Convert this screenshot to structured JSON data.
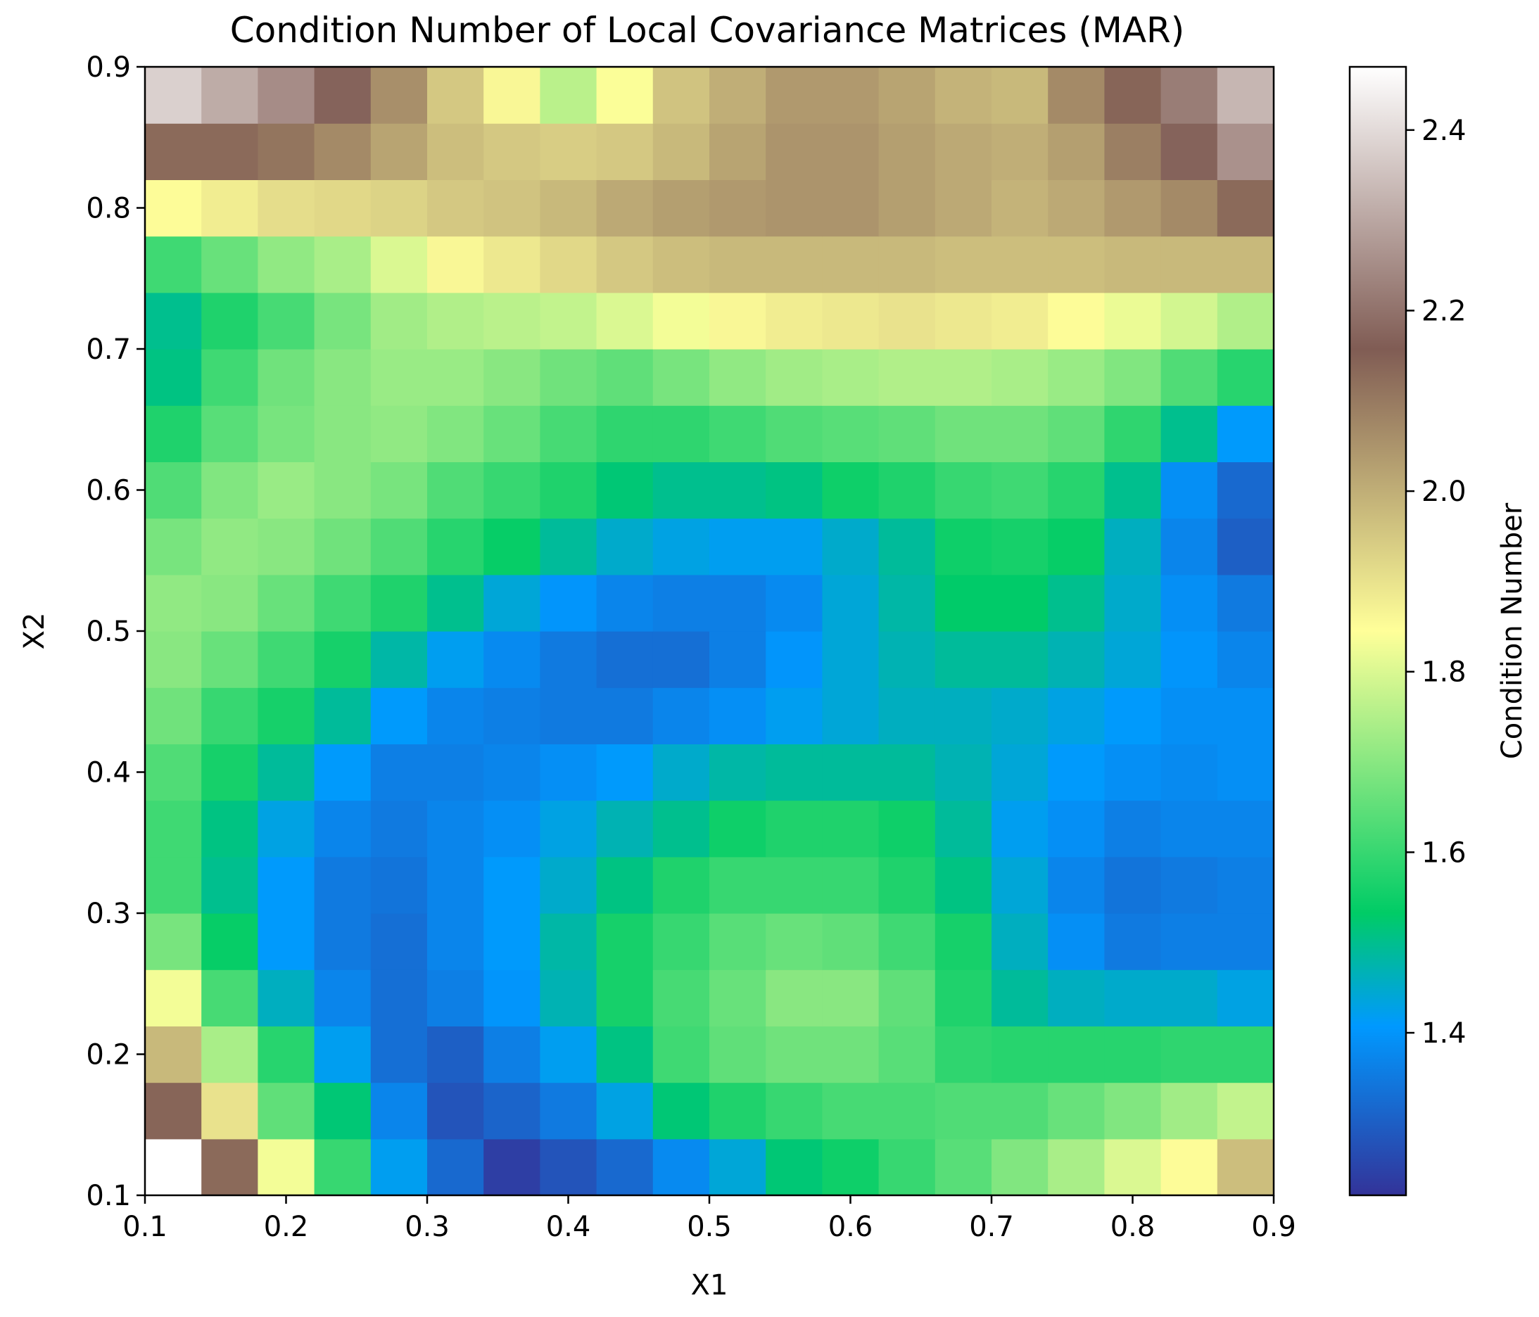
{
  "chart_data": {
    "type": "heatmap",
    "title": "Condition Number of Local Covariance Matrices (MAR)",
    "xlabel": "X1",
    "ylabel": "X2",
    "xlim": [
      0.1,
      0.9
    ],
    "ylim": [
      0.1,
      0.9
    ],
    "x_ticks": [
      "0.1",
      "0.2",
      "0.3",
      "0.4",
      "0.5",
      "0.6",
      "0.7",
      "0.8",
      "0.9"
    ],
    "y_ticks": [
      "0.1",
      "0.2",
      "0.3",
      "0.4",
      "0.5",
      "0.6",
      "0.7",
      "0.8",
      "0.9"
    ],
    "colorbar": {
      "label": "Condition Number",
      "colormap": "terrain",
      "vmin": 1.22,
      "vmax": 2.47,
      "ticks": [
        "1.4",
        "1.6",
        "1.8",
        "2.0",
        "2.2",
        "2.4"
      ]
    },
    "grid": false,
    "n_cols": 20,
    "n_rows": 20,
    "values": [
      [
        2.47,
        2.13,
        1.83,
        1.6,
        1.42,
        1.32,
        1.24,
        1.28,
        1.32,
        1.38,
        1.44,
        1.52,
        1.55,
        1.6,
        1.64,
        1.69,
        1.74,
        1.8,
        1.85,
        1.97
      ],
      [
        2.14,
        1.9,
        1.65,
        1.52,
        1.37,
        1.28,
        1.31,
        1.35,
        1.43,
        1.52,
        1.57,
        1.6,
        1.62,
        1.62,
        1.63,
        1.63,
        1.66,
        1.69,
        1.73,
        1.77
      ],
      [
        1.98,
        1.74,
        1.58,
        1.42,
        1.33,
        1.3,
        1.36,
        1.42,
        1.51,
        1.61,
        1.65,
        1.67,
        1.67,
        1.64,
        1.59,
        1.58,
        1.58,
        1.58,
        1.59,
        1.59
      ],
      [
        1.83,
        1.62,
        1.46,
        1.37,
        1.33,
        1.36,
        1.4,
        1.47,
        1.56,
        1.62,
        1.66,
        1.7,
        1.7,
        1.65,
        1.57,
        1.49,
        1.46,
        1.45,
        1.45,
        1.43
      ],
      [
        1.68,
        1.54,
        1.41,
        1.35,
        1.33,
        1.37,
        1.41,
        1.48,
        1.56,
        1.6,
        1.64,
        1.66,
        1.65,
        1.61,
        1.56,
        1.46,
        1.39,
        1.35,
        1.36,
        1.36
      ],
      [
        1.61,
        1.5,
        1.41,
        1.35,
        1.34,
        1.37,
        1.41,
        1.45,
        1.51,
        1.57,
        1.6,
        1.6,
        1.6,
        1.57,
        1.51,
        1.44,
        1.37,
        1.34,
        1.35,
        1.36
      ],
      [
        1.61,
        1.51,
        1.43,
        1.37,
        1.35,
        1.37,
        1.39,
        1.43,
        1.47,
        1.5,
        1.55,
        1.57,
        1.57,
        1.55,
        1.49,
        1.42,
        1.39,
        1.36,
        1.37,
        1.37
      ],
      [
        1.63,
        1.56,
        1.49,
        1.41,
        1.36,
        1.36,
        1.37,
        1.39,
        1.41,
        1.45,
        1.48,
        1.49,
        1.49,
        1.49,
        1.47,
        1.44,
        1.41,
        1.39,
        1.38,
        1.39
      ],
      [
        1.67,
        1.6,
        1.56,
        1.49,
        1.41,
        1.37,
        1.36,
        1.35,
        1.35,
        1.37,
        1.39,
        1.42,
        1.44,
        1.46,
        1.46,
        1.45,
        1.43,
        1.41,
        1.39,
        1.39
      ],
      [
        1.7,
        1.66,
        1.61,
        1.56,
        1.48,
        1.42,
        1.38,
        1.35,
        1.33,
        1.33,
        1.36,
        1.4,
        1.44,
        1.47,
        1.49,
        1.49,
        1.47,
        1.44,
        1.4,
        1.37
      ],
      [
        1.71,
        1.7,
        1.66,
        1.61,
        1.57,
        1.5,
        1.44,
        1.4,
        1.37,
        1.36,
        1.36,
        1.38,
        1.44,
        1.48,
        1.53,
        1.53,
        1.5,
        1.45,
        1.39,
        1.35
      ],
      [
        1.68,
        1.71,
        1.7,
        1.67,
        1.63,
        1.58,
        1.54,
        1.49,
        1.45,
        1.43,
        1.42,
        1.42,
        1.45,
        1.49,
        1.55,
        1.56,
        1.54,
        1.46,
        1.37,
        1.3
      ],
      [
        1.63,
        1.69,
        1.72,
        1.7,
        1.68,
        1.63,
        1.6,
        1.57,
        1.52,
        1.5,
        1.5,
        1.51,
        1.55,
        1.57,
        1.6,
        1.61,
        1.58,
        1.5,
        1.39,
        1.32
      ],
      [
        1.57,
        1.64,
        1.68,
        1.7,
        1.71,
        1.69,
        1.66,
        1.62,
        1.59,
        1.59,
        1.61,
        1.63,
        1.64,
        1.65,
        1.67,
        1.67,
        1.65,
        1.59,
        1.5,
        1.41
      ],
      [
        1.51,
        1.61,
        1.67,
        1.7,
        1.72,
        1.72,
        1.7,
        1.67,
        1.65,
        1.68,
        1.71,
        1.73,
        1.74,
        1.75,
        1.75,
        1.74,
        1.72,
        1.69,
        1.63,
        1.58
      ],
      [
        1.5,
        1.57,
        1.62,
        1.68,
        1.73,
        1.75,
        1.76,
        1.77,
        1.8,
        1.83,
        1.86,
        1.88,
        1.89,
        1.9,
        1.89,
        1.88,
        1.85,
        1.82,
        1.79,
        1.75
      ],
      [
        1.61,
        1.66,
        1.71,
        1.74,
        1.8,
        1.86,
        1.89,
        1.92,
        1.95,
        1.97,
        1.98,
        1.98,
        1.98,
        1.98,
        1.97,
        1.97,
        1.97,
        1.98,
        1.98,
        1.98
      ],
      [
        1.85,
        1.88,
        1.91,
        1.92,
        1.93,
        1.95,
        1.96,
        1.98,
        2.01,
        2.03,
        2.04,
        2.05,
        2.05,
        2.03,
        2.01,
        1.99,
        2.01,
        2.04,
        2.07,
        2.13
      ],
      [
        2.13,
        2.13,
        2.11,
        2.07,
        2.02,
        1.97,
        1.95,
        1.94,
        1.95,
        1.98,
        2.02,
        2.05,
        2.05,
        2.03,
        2.01,
        2.0,
        2.03,
        2.09,
        2.17,
        2.26
      ],
      [
        2.38,
        2.31,
        2.25,
        2.17,
        2.06,
        1.95,
        1.86,
        1.76,
        1.84,
        1.96,
        2.0,
        2.04,
        2.04,
        2.02,
        1.99,
        1.98,
        2.07,
        2.14,
        2.22,
        2.33
      ]
    ]
  }
}
